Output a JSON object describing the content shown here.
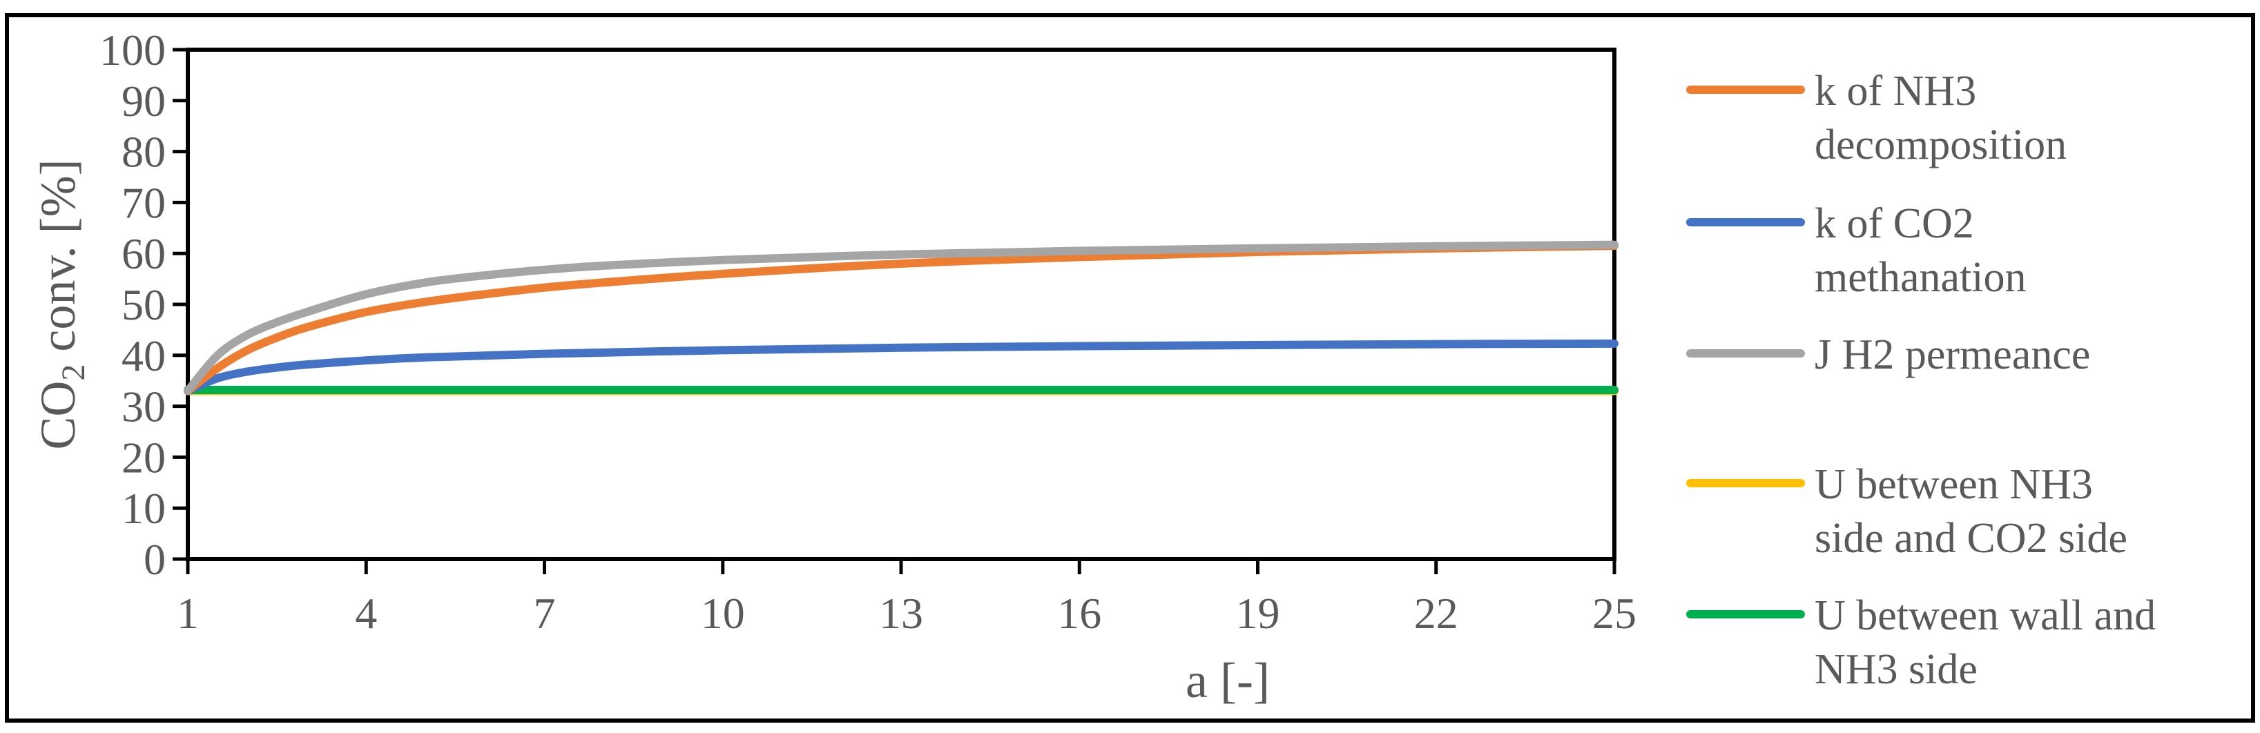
{
  "chart_data": {
    "type": "line",
    "xlabel": "a [-]",
    "ylabel": {
      "prefix": "CO",
      "subscript": "2",
      "suffix": " conv. [%]"
    },
    "xlim": [
      1,
      25
    ],
    "ylim": [
      0,
      100
    ],
    "xticks": [
      1,
      4,
      7,
      10,
      13,
      16,
      19,
      22,
      25
    ],
    "yticks": [
      0,
      10,
      20,
      30,
      40,
      50,
      60,
      70,
      80,
      90,
      100
    ],
    "grid": false,
    "legend_position": "right",
    "series": [
      {
        "name": [
          "k of NH3",
          "decomposition"
        ],
        "color": "#ED7D31",
        "x": [
          1,
          1.5,
          2,
          2.5,
          3,
          4,
          5,
          6,
          7,
          8,
          10,
          13,
          16,
          19,
          22,
          25
        ],
        "y": [
          33,
          37.5,
          41,
          43.5,
          45.5,
          48.5,
          50.5,
          52,
          53.3,
          54.3,
          56,
          58,
          59.3,
          60.3,
          61,
          61.5
        ]
      },
      {
        "name": [
          "k of CO2",
          "methanation"
        ],
        "color": "#4472C4",
        "x": [
          1,
          1.5,
          2,
          2.5,
          3,
          4,
          5,
          7,
          10,
          13,
          16,
          19,
          22,
          25
        ],
        "y": [
          33,
          35.5,
          36.8,
          37.6,
          38.2,
          39,
          39.6,
          40.3,
          41,
          41.5,
          41.8,
          42,
          42.2,
          42.3
        ]
      },
      {
        "name": [
          "J H2 permeance"
        ],
        "color": "#A5A5A5",
        "x": [
          1,
          1.5,
          2,
          2.5,
          3,
          4,
          5,
          6,
          7,
          8,
          10,
          13,
          16,
          19,
          22,
          25
        ],
        "y": [
          33,
          40,
          44,
          46.5,
          48.5,
          52,
          54.3,
          55.7,
          56.8,
          57.6,
          58.7,
          59.8,
          60.5,
          61,
          61.4,
          61.7
        ]
      },
      {
        "name": [],
        "color": "#FFFFFF",
        "x": [],
        "y": []
      },
      {
        "name": [
          "U between NH3",
          "side and CO2 side"
        ],
        "color": "#FFC000",
        "x": [
          1,
          25
        ],
        "y": [
          33,
          33
        ]
      },
      {
        "name": [
          "U between wall and",
          "NH3 side"
        ],
        "color": "#00B050",
        "x": [
          1,
          25
        ],
        "y": [
          33.2,
          33.2
        ]
      }
    ]
  }
}
